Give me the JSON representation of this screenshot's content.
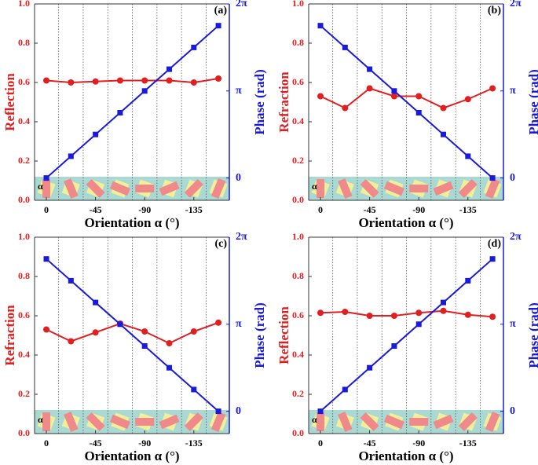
{
  "chart_data": [
    {
      "type": "line",
      "panel_label": "(a)",
      "ylabel": "Reflection",
      "y2label": "Phase (rad)",
      "xlabel": "Orientation α (°)",
      "strip_label": "α",
      "x": [
        0,
        -22.5,
        -45,
        -67.5,
        -90,
        -112.5,
        -135,
        -157.5
      ],
      "xlim": [
        10.8,
        -167.5
      ],
      "xticks": [
        0,
        -45,
        -90,
        -135
      ],
      "ylim": [
        0,
        1
      ],
      "yticks": [
        {
          "value": 0,
          "label": "0.0"
        },
        0.2,
        0.4,
        0.6,
        0.8,
        {
          "value": 1,
          "label": "1.0"
        }
      ],
      "y2lim": [
        -0.805,
        6.283
      ],
      "y2ticks": [
        0,
        {
          "value": 3.1416,
          "label": "π"
        },
        {
          "value": 6.2832,
          "label": "2π"
        }
      ],
      "series": [
        {
          "color": "#e02020",
          "values": [
            0.61,
            0.6,
            0.605,
            0.61,
            0.61,
            0.61,
            0.6,
            0.62
          ]
        },
        {
          "color": "#1a1adc",
          "axis": "y2",
          "values": [
            0,
            0.785,
            1.571,
            2.356,
            3.142,
            3.927,
            4.712,
            5.498
          ]
        }
      ]
    },
    {
      "type": "line",
      "panel_label": "(b)",
      "ylabel": "Refraction",
      "y2label": "Phase (rad)",
      "xlabel": "Orientation α (°)",
      "strip_label": "α",
      "x": [
        0,
        -22.5,
        -45,
        -67.5,
        -90,
        -112.5,
        -135,
        -157.5
      ],
      "xlim": [
        10.8,
        -167.5
      ],
      "xticks": [
        0,
        -45,
        -90,
        -135
      ],
      "ylim": [
        0,
        1
      ],
      "yticks": [
        {
          "value": 0,
          "label": "0.0"
        },
        0.2,
        0.4,
        0.6,
        0.8,
        {
          "value": 1,
          "label": "1.0"
        }
      ],
      "y2lim": [
        -0.805,
        6.283
      ],
      "y2ticks": [
        0,
        {
          "value": 3.1416,
          "label": "π"
        },
        {
          "value": 6.2832,
          "label": "2π"
        }
      ],
      "series": [
        {
          "color": "#e02020",
          "values": [
            0.53,
            0.47,
            0.57,
            0.53,
            0.53,
            0.47,
            0.515,
            0.57
          ]
        },
        {
          "color": "#1a1adc",
          "axis": "y2",
          "values": [
            5.498,
            4.712,
            3.927,
            3.142,
            2.356,
            1.571,
            0.785,
            0
          ]
        }
      ]
    },
    {
      "type": "line",
      "panel_label": "(c)",
      "ylabel": "Refraction",
      "y2label": "Phase (rad)",
      "xlabel": "Orientation α (°)",
      "strip_label": "α",
      "x": [
        0,
        -22.5,
        -45,
        -67.5,
        -90,
        -112.5,
        -135,
        -157.5
      ],
      "xlim": [
        10.8,
        -167.5
      ],
      "xticks": [
        0,
        -45,
        -90,
        -135
      ],
      "ylim": [
        0,
        1
      ],
      "yticks": [
        {
          "value": 0,
          "label": "0.0"
        },
        0.2,
        0.4,
        0.6,
        0.8,
        {
          "value": 1,
          "label": "1.0"
        }
      ],
      "y2lim": [
        -0.805,
        6.283
      ],
      "y2ticks": [
        0,
        {
          "value": 3.1416,
          "label": "π"
        },
        {
          "value": 6.2832,
          "label": "2π"
        }
      ],
      "series": [
        {
          "color": "#e02020",
          "values": [
            0.53,
            0.47,
            0.515,
            0.56,
            0.52,
            0.46,
            0.52,
            0.565
          ]
        },
        {
          "color": "#1a1adc",
          "axis": "y2",
          "values": [
            5.498,
            4.712,
            3.927,
            3.142,
            2.356,
            1.571,
            0.785,
            0
          ]
        }
      ]
    },
    {
      "type": "line",
      "panel_label": "(d)",
      "ylabel": "Reflection",
      "y2label": "Phase (rad)",
      "xlabel": "Orientation α (°)",
      "strip_label": "α",
      "x": [
        0,
        -22.5,
        -45,
        -67.5,
        -90,
        -112.5,
        -135,
        -157.5
      ],
      "xlim": [
        10.8,
        -167.5
      ],
      "xticks": [
        0,
        -45,
        -90,
        -135
      ],
      "ylim": [
        0,
        1
      ],
      "yticks": [
        {
          "value": 0,
          "label": "0.0"
        },
        0.2,
        0.4,
        0.6,
        0.8,
        {
          "value": 1,
          "label": "1.0"
        }
      ],
      "y2lim": [
        -0.805,
        6.283
      ],
      "y2ticks": [
        0,
        {
          "value": 3.1416,
          "label": "π"
        },
        {
          "value": 6.2832,
          "label": "2π"
        }
      ],
      "series": [
        {
          "color": "#e02020",
          "values": [
            0.615,
            0.62,
            0.6,
            0.6,
            0.615,
            0.625,
            0.605,
            0.595
          ]
        },
        {
          "color": "#1a1adc",
          "axis": "y2",
          "values": [
            0,
            0.785,
            1.571,
            2.356,
            3.142,
            3.927,
            4.712,
            5.498
          ]
        }
      ]
    }
  ]
}
